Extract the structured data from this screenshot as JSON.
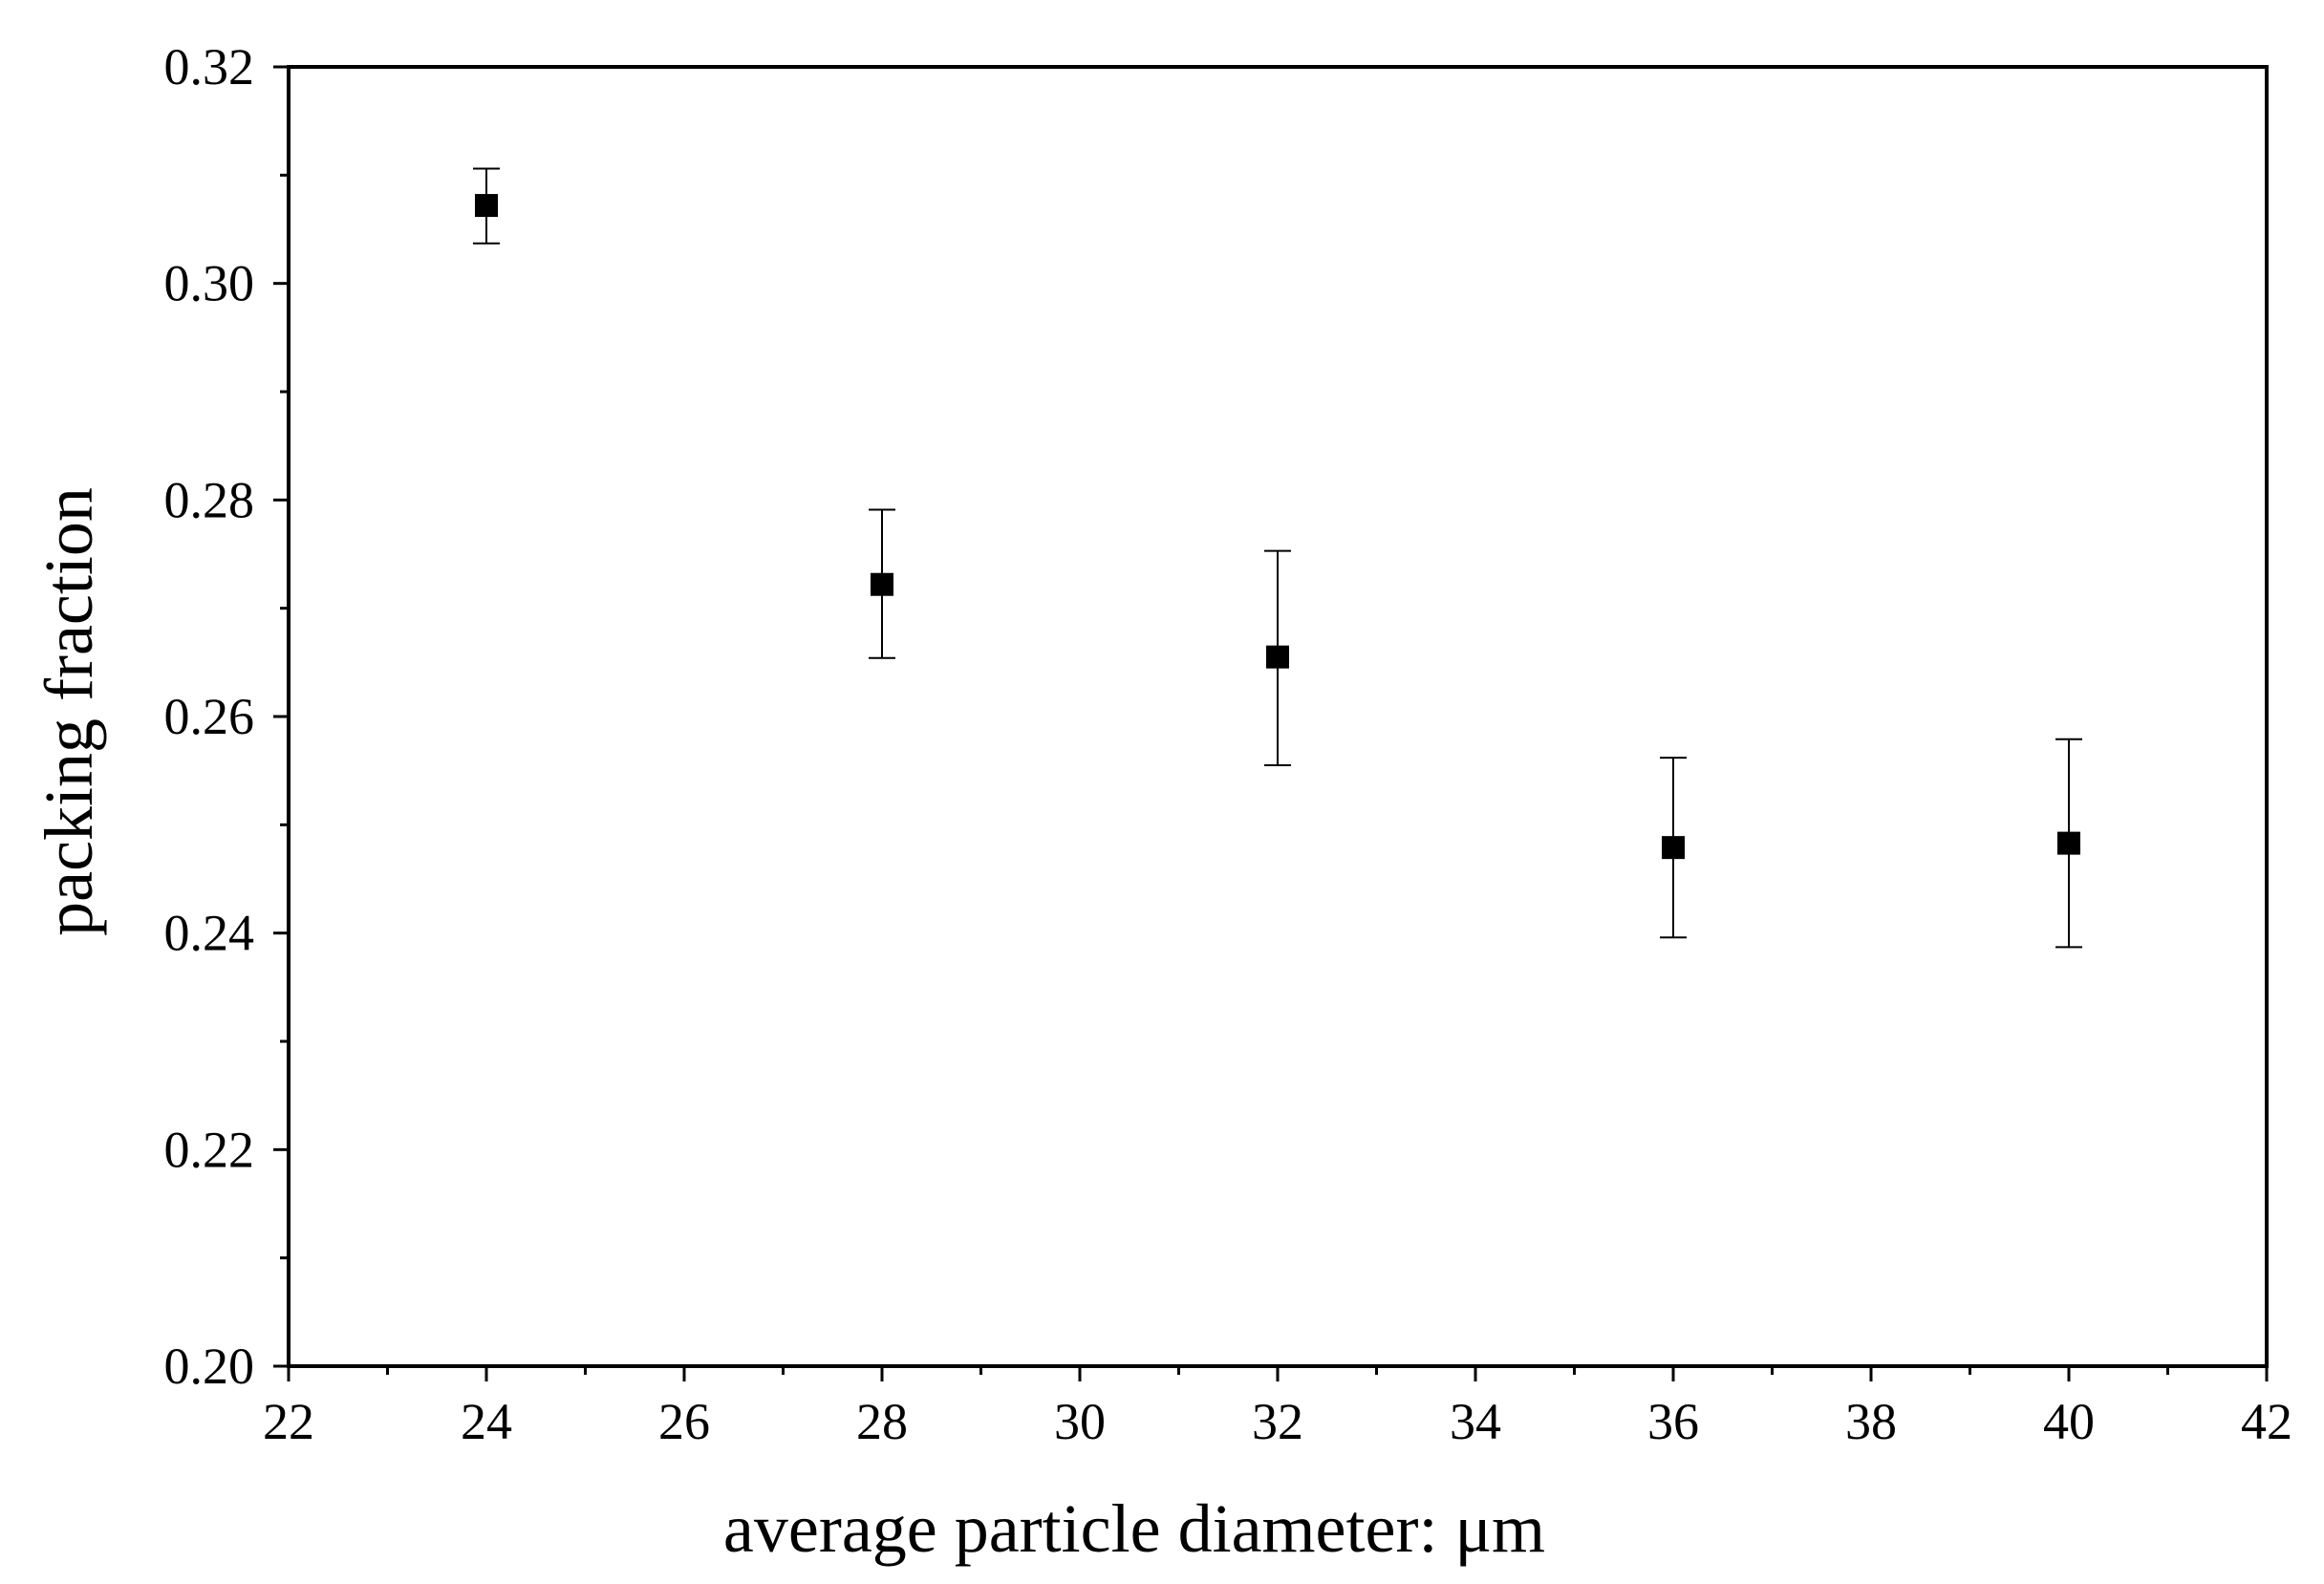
{
  "chart_data": {
    "type": "scatter",
    "title": "",
    "xlabel": "average particle diameter: μm",
    "ylabel": "packing fraction",
    "xlim": [
      22,
      42
    ],
    "ylim": [
      0.2,
      0.32
    ],
    "x_ticks": [
      "22",
      "24",
      "26",
      "28",
      "30",
      "32",
      "34",
      "36",
      "38",
      "40",
      "42"
    ],
    "y_ticks": [
      "0.20",
      "0.22",
      "0.24",
      "0.26",
      "0.28",
      "0.30",
      "0.32"
    ],
    "x_minor_step": 1,
    "y_minor_step": 0.01,
    "grid": false,
    "marker": "square",
    "series": [
      {
        "x": [
          24,
          28,
          32,
          36,
          40
        ],
        "y": [
          0.3072,
          0.2722,
          0.2655,
          0.2479,
          0.2483
        ],
        "error_low": [
          0.3037,
          0.2654,
          0.2555,
          0.2396,
          0.2387
        ],
        "error_high": [
          0.3106,
          0.2791,
          0.2753,
          0.2562,
          0.2579
        ]
      }
    ],
    "colors": {
      "axis": "#000000",
      "marker": "#000000",
      "background": "#ffffff"
    }
  }
}
